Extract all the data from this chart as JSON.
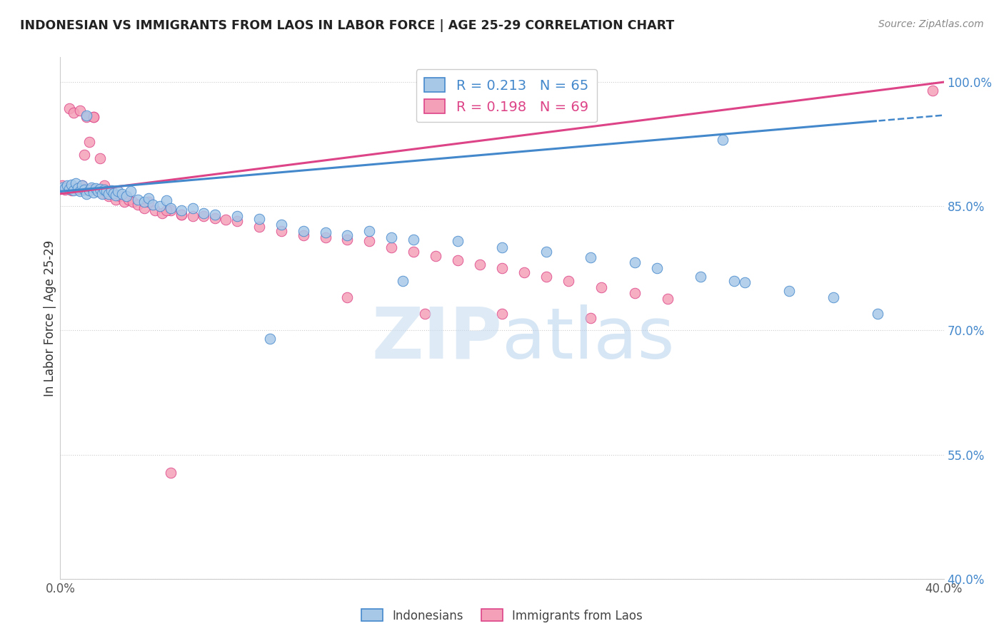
{
  "title": "INDONESIAN VS IMMIGRANTS FROM LAOS IN LABOR FORCE | AGE 25-29 CORRELATION CHART",
  "source": "Source: ZipAtlas.com",
  "ylabel": "In Labor Force | Age 25-29",
  "xlim": [
    0.0,
    0.4
  ],
  "ylim": [
    0.4,
    1.03
  ],
  "yticks": [
    0.4,
    0.55,
    0.7,
    0.85,
    1.0
  ],
  "ytick_labels": [
    "40.0%",
    "55.0%",
    "70.0%",
    "85.0%",
    "100.0%"
  ],
  "xtick_positions": [
    0.0,
    0.05,
    0.1,
    0.15,
    0.2,
    0.25,
    0.3,
    0.35,
    0.4
  ],
  "legend_r1": "R = 0.213",
  "legend_n1": "N = 65",
  "legend_r2": "R = 0.198",
  "legend_n2": "N = 69",
  "color_blue": "#a8c8e8",
  "color_pink": "#f4a0b8",
  "color_blue_line": "#4488cc",
  "color_pink_line": "#dd4488",
  "blue_x": [
    0.001,
    0.002,
    0.003,
    0.004,
    0.005,
    0.006,
    0.007,
    0.008,
    0.009,
    0.01,
    0.011,
    0.012,
    0.013,
    0.014,
    0.015,
    0.016,
    0.017,
    0.018,
    0.019,
    0.02,
    0.021,
    0.022,
    0.023,
    0.024,
    0.025,
    0.026,
    0.028,
    0.03,
    0.032,
    0.035,
    0.038,
    0.04,
    0.042,
    0.045,
    0.048,
    0.05,
    0.055,
    0.06,
    0.065,
    0.07,
    0.08,
    0.09,
    0.1,
    0.11,
    0.12,
    0.13,
    0.14,
    0.15,
    0.16,
    0.18,
    0.2,
    0.22,
    0.24,
    0.26,
    0.27,
    0.29,
    0.305,
    0.31,
    0.33,
    0.35,
    0.012,
    0.095,
    0.155,
    0.3,
    0.37
  ],
  "blue_y": [
    0.873,
    0.872,
    0.875,
    0.871,
    0.876,
    0.869,
    0.878,
    0.872,
    0.868,
    0.875,
    0.87,
    0.865,
    0.869,
    0.873,
    0.867,
    0.872,
    0.868,
    0.871,
    0.865,
    0.87,
    0.868,
    0.865,
    0.869,
    0.866,
    0.863,
    0.868,
    0.865,
    0.862,
    0.868,
    0.858,
    0.855,
    0.86,
    0.852,
    0.85,
    0.857,
    0.848,
    0.845,
    0.848,
    0.842,
    0.84,
    0.838,
    0.835,
    0.828,
    0.82,
    0.818,
    0.815,
    0.82,
    0.812,
    0.81,
    0.808,
    0.8,
    0.795,
    0.788,
    0.782,
    0.775,
    0.765,
    0.76,
    0.758,
    0.748,
    0.74,
    0.96,
    0.69,
    0.76,
    0.93,
    0.72
  ],
  "pink_x": [
    0.001,
    0.002,
    0.003,
    0.004,
    0.005,
    0.006,
    0.007,
    0.008,
    0.009,
    0.01,
    0.011,
    0.012,
    0.013,
    0.014,
    0.015,
    0.016,
    0.017,
    0.018,
    0.019,
    0.02,
    0.021,
    0.022,
    0.023,
    0.025,
    0.027,
    0.029,
    0.031,
    0.033,
    0.035,
    0.038,
    0.04,
    0.043,
    0.046,
    0.05,
    0.055,
    0.06,
    0.065,
    0.07,
    0.075,
    0.08,
    0.09,
    0.1,
    0.11,
    0.12,
    0.13,
    0.14,
    0.15,
    0.16,
    0.17,
    0.18,
    0.19,
    0.2,
    0.21,
    0.22,
    0.23,
    0.245,
    0.26,
    0.275,
    0.01,
    0.015,
    0.02,
    0.048,
    0.055,
    0.13,
    0.165,
    0.2,
    0.24,
    0.395,
    0.05
  ],
  "pink_y": [
    0.875,
    0.87,
    0.873,
    0.968,
    0.869,
    0.963,
    0.873,
    0.87,
    0.966,
    0.87,
    0.912,
    0.958,
    0.928,
    0.871,
    0.958,
    0.87,
    0.87,
    0.908,
    0.866,
    0.87,
    0.866,
    0.862,
    0.868,
    0.858,
    0.862,
    0.855,
    0.858,
    0.855,
    0.852,
    0.848,
    0.855,
    0.845,
    0.842,
    0.845,
    0.84,
    0.838,
    0.838,
    0.836,
    0.834,
    0.832,
    0.825,
    0.82,
    0.815,
    0.812,
    0.81,
    0.808,
    0.8,
    0.795,
    0.79,
    0.785,
    0.78,
    0.775,
    0.77,
    0.765,
    0.76,
    0.752,
    0.745,
    0.738,
    0.875,
    0.958,
    0.875,
    0.845,
    0.84,
    0.74,
    0.72,
    0.72,
    0.715,
    0.99,
    0.528
  ]
}
